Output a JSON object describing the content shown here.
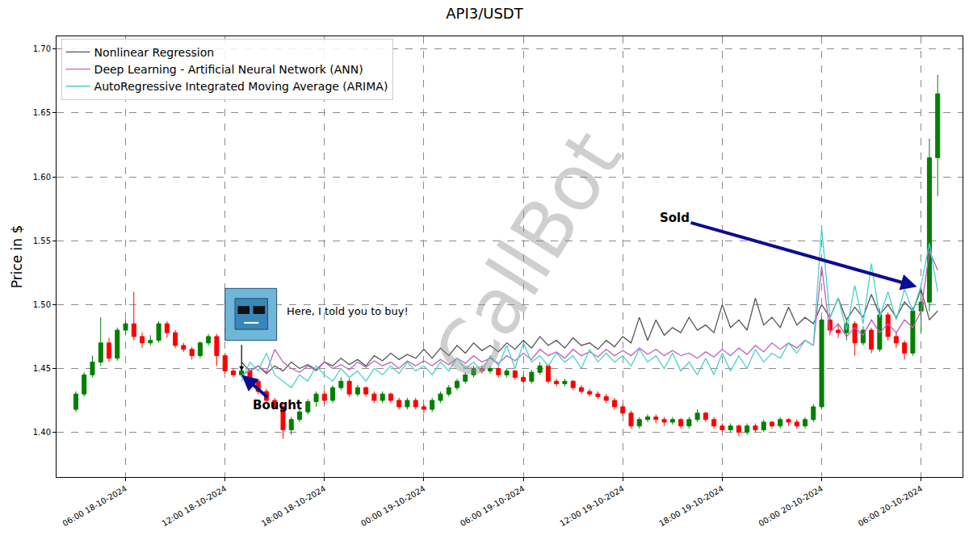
{
  "chart_data": {
    "type": "candlestick",
    "title": "API3/USDT",
    "y_label": "Price in $",
    "x": [
      "2024-10-18 03:00",
      "2024-10-18 03:30",
      "2024-10-18 04:00",
      "2024-10-18 04:30",
      "2024-10-18 05:00",
      "2024-10-18 05:30",
      "2024-10-18 06:00",
      "2024-10-18 06:30",
      "2024-10-18 07:00",
      "2024-10-18 07:30",
      "2024-10-18 08:00",
      "2024-10-18 08:30",
      "2024-10-18 09:00",
      "2024-10-18 09:30",
      "2024-10-18 10:00",
      "2024-10-18 10:30",
      "2024-10-18 11:00",
      "2024-10-18 11:30",
      "2024-10-18 12:00",
      "2024-10-18 12:30",
      "2024-10-18 13:00",
      "2024-10-18 13:30",
      "2024-10-18 14:00",
      "2024-10-18 14:30",
      "2024-10-18 15:00",
      "2024-10-18 15:30",
      "2024-10-18 16:00",
      "2024-10-18 16:30",
      "2024-10-18 17:00",
      "2024-10-18 17:30",
      "2024-10-18 18:00",
      "2024-10-18 18:30",
      "2024-10-18 19:00",
      "2024-10-18 19:30",
      "2024-10-18 20:00",
      "2024-10-18 20:30",
      "2024-10-18 21:00",
      "2024-10-18 21:30",
      "2024-10-18 22:00",
      "2024-10-18 22:30",
      "2024-10-18 23:00",
      "2024-10-18 23:30",
      "2024-10-19 00:00",
      "2024-10-19 00:30",
      "2024-10-19 01:00",
      "2024-10-19 01:30",
      "2024-10-19 02:00",
      "2024-10-19 02:30",
      "2024-10-19 03:00",
      "2024-10-19 03:30",
      "2024-10-19 04:00",
      "2024-10-19 04:30",
      "2024-10-19 05:00",
      "2024-10-19 05:30",
      "2024-10-19 06:00",
      "2024-10-19 06:30",
      "2024-10-19 07:00",
      "2024-10-19 07:30",
      "2024-10-19 08:00",
      "2024-10-19 08:30",
      "2024-10-19 09:00",
      "2024-10-19 09:30",
      "2024-10-19 10:00",
      "2024-10-19 10:30",
      "2024-10-19 11:00",
      "2024-10-19 11:30",
      "2024-10-19 12:00",
      "2024-10-19 12:30",
      "2024-10-19 13:00",
      "2024-10-19 13:30",
      "2024-10-19 14:00",
      "2024-10-19 14:30",
      "2024-10-19 15:00",
      "2024-10-19 15:30",
      "2024-10-19 16:00",
      "2024-10-19 16:30",
      "2024-10-19 17:00",
      "2024-10-19 17:30",
      "2024-10-19 18:00",
      "2024-10-19 18:30",
      "2024-10-19 19:00",
      "2024-10-19 19:30",
      "2024-10-19 20:00",
      "2024-10-19 20:30",
      "2024-10-19 21:00",
      "2024-10-19 21:30",
      "2024-10-19 22:00",
      "2024-10-19 22:30",
      "2024-10-19 23:00",
      "2024-10-19 23:30",
      "2024-10-20 00:00",
      "2024-10-20 00:30",
      "2024-10-20 01:00",
      "2024-10-20 01:30",
      "2024-10-20 02:00",
      "2024-10-20 02:30",
      "2024-10-20 03:00",
      "2024-10-20 03:30",
      "2024-10-20 04:00",
      "2024-10-20 04:30",
      "2024-10-20 05:00",
      "2024-10-20 05:30",
      "2024-10-20 06:00",
      "2024-10-20 06:30",
      "2024-10-20 07:00"
    ],
    "open": [
      1.418,
      1.43,
      1.445,
      1.455,
      1.47,
      1.458,
      1.48,
      1.485,
      1.475,
      1.47,
      1.472,
      1.485,
      1.478,
      1.468,
      1.465,
      1.46,
      1.47,
      1.475,
      1.46,
      1.448,
      1.445,
      1.448,
      1.44,
      1.432,
      1.425,
      1.42,
      1.402,
      1.41,
      1.416,
      1.424,
      1.43,
      1.425,
      1.435,
      1.44,
      1.43,
      1.435,
      1.43,
      1.425,
      1.43,
      1.425,
      1.42,
      1.425,
      1.42,
      1.418,
      1.425,
      1.43,
      1.435,
      1.44,
      1.445,
      1.45,
      1.448,
      1.45,
      1.445,
      1.448,
      1.443,
      1.44,
      1.447,
      1.452,
      1.44,
      1.438,
      1.44,
      1.435,
      1.432,
      1.43,
      1.428,
      1.425,
      1.42,
      1.415,
      1.405,
      1.41,
      1.412,
      1.41,
      1.408,
      1.41,
      1.405,
      1.41,
      1.415,
      1.41,
      1.405,
      1.402,
      1.405,
      1.4,
      1.405,
      1.402,
      1.408,
      1.405,
      1.41,
      1.408,
      1.405,
      1.41,
      1.42,
      1.488,
      1.48,
      1.478,
      1.485,
      1.47,
      1.48,
      1.465,
      1.492,
      1.475,
      1.47,
      1.462,
      1.495,
      1.502,
      1.615
    ],
    "high": [
      1.432,
      1.447,
      1.46,
      1.49,
      1.474,
      1.482,
      1.488,
      1.51,
      1.478,
      1.476,
      1.487,
      1.487,
      1.48,
      1.47,
      1.467,
      1.471,
      1.477,
      1.477,
      1.462,
      1.45,
      1.45,
      1.449,
      1.441,
      1.434,
      1.427,
      1.422,
      1.412,
      1.418,
      1.426,
      1.432,
      1.432,
      1.437,
      1.443,
      1.442,
      1.437,
      1.436,
      1.432,
      1.432,
      1.431,
      1.427,
      1.427,
      1.427,
      1.422,
      1.427,
      1.432,
      1.437,
      1.442,
      1.447,
      1.452,
      1.452,
      1.452,
      1.451,
      1.45,
      1.449,
      1.445,
      1.449,
      1.455,
      1.453,
      1.442,
      1.442,
      1.441,
      1.437,
      1.434,
      1.432,
      1.43,
      1.427,
      1.422,
      1.417,
      1.412,
      1.414,
      1.414,
      1.412,
      1.412,
      1.411,
      1.412,
      1.418,
      1.416,
      1.412,
      1.407,
      1.407,
      1.406,
      1.407,
      1.407,
      1.41,
      1.409,
      1.412,
      1.411,
      1.41,
      1.412,
      1.422,
      1.49,
      1.492,
      1.485,
      1.488,
      1.487,
      1.483,
      1.482,
      1.497,
      1.494,
      1.479,
      1.472,
      1.498,
      1.512,
      1.63,
      1.68
    ],
    "low": [
      1.416,
      1.428,
      1.443,
      1.452,
      1.455,
      1.456,
      1.476,
      1.472,
      1.466,
      1.468,
      1.47,
      1.474,
      1.466,
      1.463,
      1.457,
      1.458,
      1.468,
      1.452,
      1.446,
      1.443,
      1.443,
      1.438,
      1.43,
      1.423,
      1.418,
      1.395,
      1.398,
      1.408,
      1.414,
      1.42,
      1.422,
      1.423,
      1.433,
      1.428,
      1.428,
      1.428,
      1.423,
      1.423,
      1.423,
      1.418,
      1.418,
      1.418,
      1.415,
      1.416,
      1.423,
      1.428,
      1.433,
      1.438,
      1.443,
      1.446,
      1.446,
      1.443,
      1.443,
      1.441,
      1.438,
      1.438,
      1.445,
      1.438,
      1.436,
      1.436,
      1.433,
      1.43,
      1.428,
      1.426,
      1.423,
      1.418,
      1.413,
      1.403,
      1.403,
      1.408,
      1.407,
      1.405,
      1.406,
      1.403,
      1.403,
      1.408,
      1.408,
      1.403,
      1.4,
      1.4,
      1.397,
      1.398,
      1.4,
      1.4,
      1.403,
      1.403,
      1.405,
      1.403,
      1.403,
      1.408,
      1.418,
      1.476,
      1.474,
      1.472,
      1.46,
      1.468,
      1.462,
      1.463,
      1.472,
      1.466,
      1.457,
      1.46,
      1.478,
      1.495,
      1.585
    ],
    "close": [
      1.43,
      1.445,
      1.455,
      1.47,
      1.458,
      1.48,
      1.485,
      1.475,
      1.47,
      1.472,
      1.485,
      1.478,
      1.468,
      1.465,
      1.46,
      1.47,
      1.475,
      1.46,
      1.448,
      1.445,
      1.448,
      1.44,
      1.432,
      1.425,
      1.42,
      1.402,
      1.41,
      1.416,
      1.424,
      1.43,
      1.425,
      1.435,
      1.44,
      1.43,
      1.435,
      1.43,
      1.425,
      1.43,
      1.425,
      1.42,
      1.425,
      1.42,
      1.418,
      1.425,
      1.43,
      1.435,
      1.44,
      1.445,
      1.45,
      1.448,
      1.45,
      1.445,
      1.448,
      1.443,
      1.44,
      1.447,
      1.452,
      1.44,
      1.438,
      1.44,
      1.435,
      1.432,
      1.43,
      1.428,
      1.425,
      1.42,
      1.415,
      1.405,
      1.41,
      1.412,
      1.41,
      1.408,
      1.41,
      1.405,
      1.41,
      1.415,
      1.41,
      1.405,
      1.402,
      1.405,
      1.4,
      1.405,
      1.402,
      1.408,
      1.405,
      1.41,
      1.408,
      1.405,
      1.41,
      1.42,
      1.488,
      1.48,
      1.478,
      1.485,
      1.47,
      1.48,
      1.465,
      1.492,
      1.475,
      1.47,
      1.462,
      1.495,
      1.502,
      1.615,
      1.665
    ],
    "color": {
      "increasing": "#008000",
      "decreasing": "#ff0000"
    },
    "series": [
      {
        "name": "Nonlinear Regression",
        "type": "line",
        "color": "#555555",
        "values": [
          null,
          null,
          null,
          null,
          null,
          null,
          null,
          null,
          null,
          null,
          null,
          null,
          null,
          null,
          null,
          null,
          null,
          null,
          null,
          null,
          1.455,
          1.448,
          1.452,
          1.446,
          1.452,
          1.448,
          1.455,
          1.45,
          1.453,
          1.449,
          1.455,
          1.452,
          1.458,
          1.453,
          1.457,
          1.452,
          1.46,
          1.456,
          1.462,
          1.457,
          1.461,
          1.458,
          1.465,
          1.458,
          1.466,
          1.46,
          1.468,
          1.462,
          1.47,
          1.464,
          1.468,
          1.463,
          1.47,
          1.465,
          1.472,
          1.466,
          1.475,
          1.468,
          1.472,
          1.466,
          1.474,
          1.468,
          1.47,
          1.465,
          1.472,
          1.467,
          1.475,
          1.47,
          1.49,
          1.472,
          1.488,
          1.476,
          1.482,
          1.478,
          1.49,
          1.48,
          1.484,
          1.478,
          1.5,
          1.482,
          1.488,
          1.48,
          1.505,
          1.484,
          1.49,
          1.482,
          1.498,
          1.484,
          1.49,
          1.485,
          1.5,
          1.49,
          1.505,
          1.488,
          1.498,
          1.49,
          1.508,
          1.492,
          1.5,
          1.49,
          1.502,
          1.495,
          1.512,
          1.488,
          1.495
        ]
      },
      {
        "name": "Deep Learning - Artificial Neural Network (ANN)",
        "type": "line",
        "color": "#bf5fbf",
        "values": [
          null,
          null,
          null,
          null,
          null,
          null,
          null,
          null,
          null,
          null,
          null,
          null,
          null,
          null,
          null,
          null,
          null,
          null,
          null,
          null,
          1.445,
          1.448,
          1.452,
          1.447,
          1.465,
          1.455,
          1.45,
          1.447,
          1.452,
          1.448,
          1.455,
          1.45,
          1.453,
          1.449,
          1.455,
          1.451,
          1.456,
          1.452,
          1.455,
          1.45,
          1.456,
          1.452,
          1.456,
          1.452,
          1.457,
          1.453,
          1.458,
          1.454,
          1.46,
          1.455,
          1.458,
          1.454,
          1.46,
          1.456,
          1.462,
          1.457,
          1.465,
          1.46,
          1.463,
          1.458,
          1.465,
          1.46,
          1.463,
          1.459,
          1.465,
          1.46,
          1.464,
          1.46,
          1.466,
          1.461,
          1.465,
          1.46,
          1.464,
          1.46,
          1.462,
          1.458,
          1.463,
          1.459,
          1.465,
          1.46,
          1.466,
          1.461,
          1.468,
          1.463,
          1.47,
          1.465,
          1.47,
          1.466,
          1.472,
          1.468,
          1.53,
          1.478,
          1.485,
          1.475,
          1.482,
          1.476,
          1.488,
          1.478,
          1.485,
          1.478,
          1.488,
          1.482,
          1.495,
          1.542,
          1.527
        ]
      },
      {
        "name": "AutoRegressive Integrated Moving Average (ARIMA)",
        "type": "line",
        "color": "#48d1cc",
        "values": [
          null,
          null,
          null,
          null,
          null,
          null,
          null,
          null,
          null,
          null,
          null,
          null,
          null,
          null,
          null,
          null,
          null,
          null,
          null,
          null,
          1.44,
          1.455,
          1.448,
          1.462,
          1.445,
          1.44,
          1.435,
          1.445,
          1.44,
          1.452,
          1.445,
          1.44,
          1.45,
          1.443,
          1.448,
          1.44,
          1.45,
          1.445,
          1.452,
          1.446,
          1.455,
          1.448,
          1.452,
          1.445,
          1.455,
          1.448,
          1.458,
          1.45,
          1.455,
          1.448,
          1.46,
          1.452,
          1.468,
          1.45,
          1.47,
          1.455,
          1.46,
          1.452,
          1.462,
          1.455,
          1.46,
          1.45,
          1.465,
          1.455,
          1.462,
          1.455,
          1.46,
          1.452,
          1.465,
          1.455,
          1.46,
          1.45,
          1.462,
          1.448,
          1.455,
          1.445,
          1.458,
          1.445,
          1.462,
          1.448,
          1.46,
          1.45,
          1.465,
          1.455,
          1.462,
          1.458,
          1.47,
          1.462,
          1.472,
          1.468,
          1.56,
          1.49,
          1.505,
          1.48,
          1.515,
          1.485,
          1.532,
          1.49,
          1.51,
          1.488,
          1.512,
          1.495,
          1.515,
          1.548,
          1.51
        ]
      }
    ],
    "xlim": [
      "2024-10-18 01:50",
      "2024-10-20 08:30"
    ],
    "xticks": [
      {
        "value": "2024-10-18 06:00",
        "label": "06:00 18-10-2024"
      },
      {
        "value": "2024-10-18 12:00",
        "label": "12:00 18-10-2024"
      },
      {
        "value": "2024-10-18 18:00",
        "label": "18:00 18-10-2024"
      },
      {
        "value": "2024-10-19 00:00",
        "label": "00:00 19-10-2024"
      },
      {
        "value": "2024-10-19 06:00",
        "label": "06:00 19-10-2024"
      },
      {
        "value": "2024-10-19 12:00",
        "label": "12:00 19-10-2024"
      },
      {
        "value": "2024-10-19 18:00",
        "label": "18:00 19-10-2024"
      },
      {
        "value": "2024-10-20 00:00",
        "label": "00:00 20-10-2024"
      },
      {
        "value": "2024-10-20 06:00",
        "label": "06:00 20-10-2024"
      }
    ],
    "ylim": [
      1.365,
      1.71
    ],
    "yticks": [
      {
        "value": 1.4,
        "label": "1.40"
      },
      {
        "value": 1.45,
        "label": "1.45"
      },
      {
        "value": 1.5,
        "label": "1.50"
      },
      {
        "value": 1.55,
        "label": "1.55"
      },
      {
        "value": 1.6,
        "label": "1.60"
      },
      {
        "value": 1.65,
        "label": "1.65"
      },
      {
        "value": 1.7,
        "label": "1.70"
      }
    ],
    "grid": true,
    "legend": "upper left",
    "annotations": [
      {
        "text": "Bought",
        "x": "2024-10-18 13:00",
        "y": 1.445
      },
      {
        "text": "Sold",
        "x": "2024-10-20 05:45",
        "y": 1.514
      },
      {
        "text": "Here, I told you to buy!",
        "x": "2024-10-18 13:00",
        "y": 1.448
      }
    ],
    "watermark": "CallBot"
  }
}
